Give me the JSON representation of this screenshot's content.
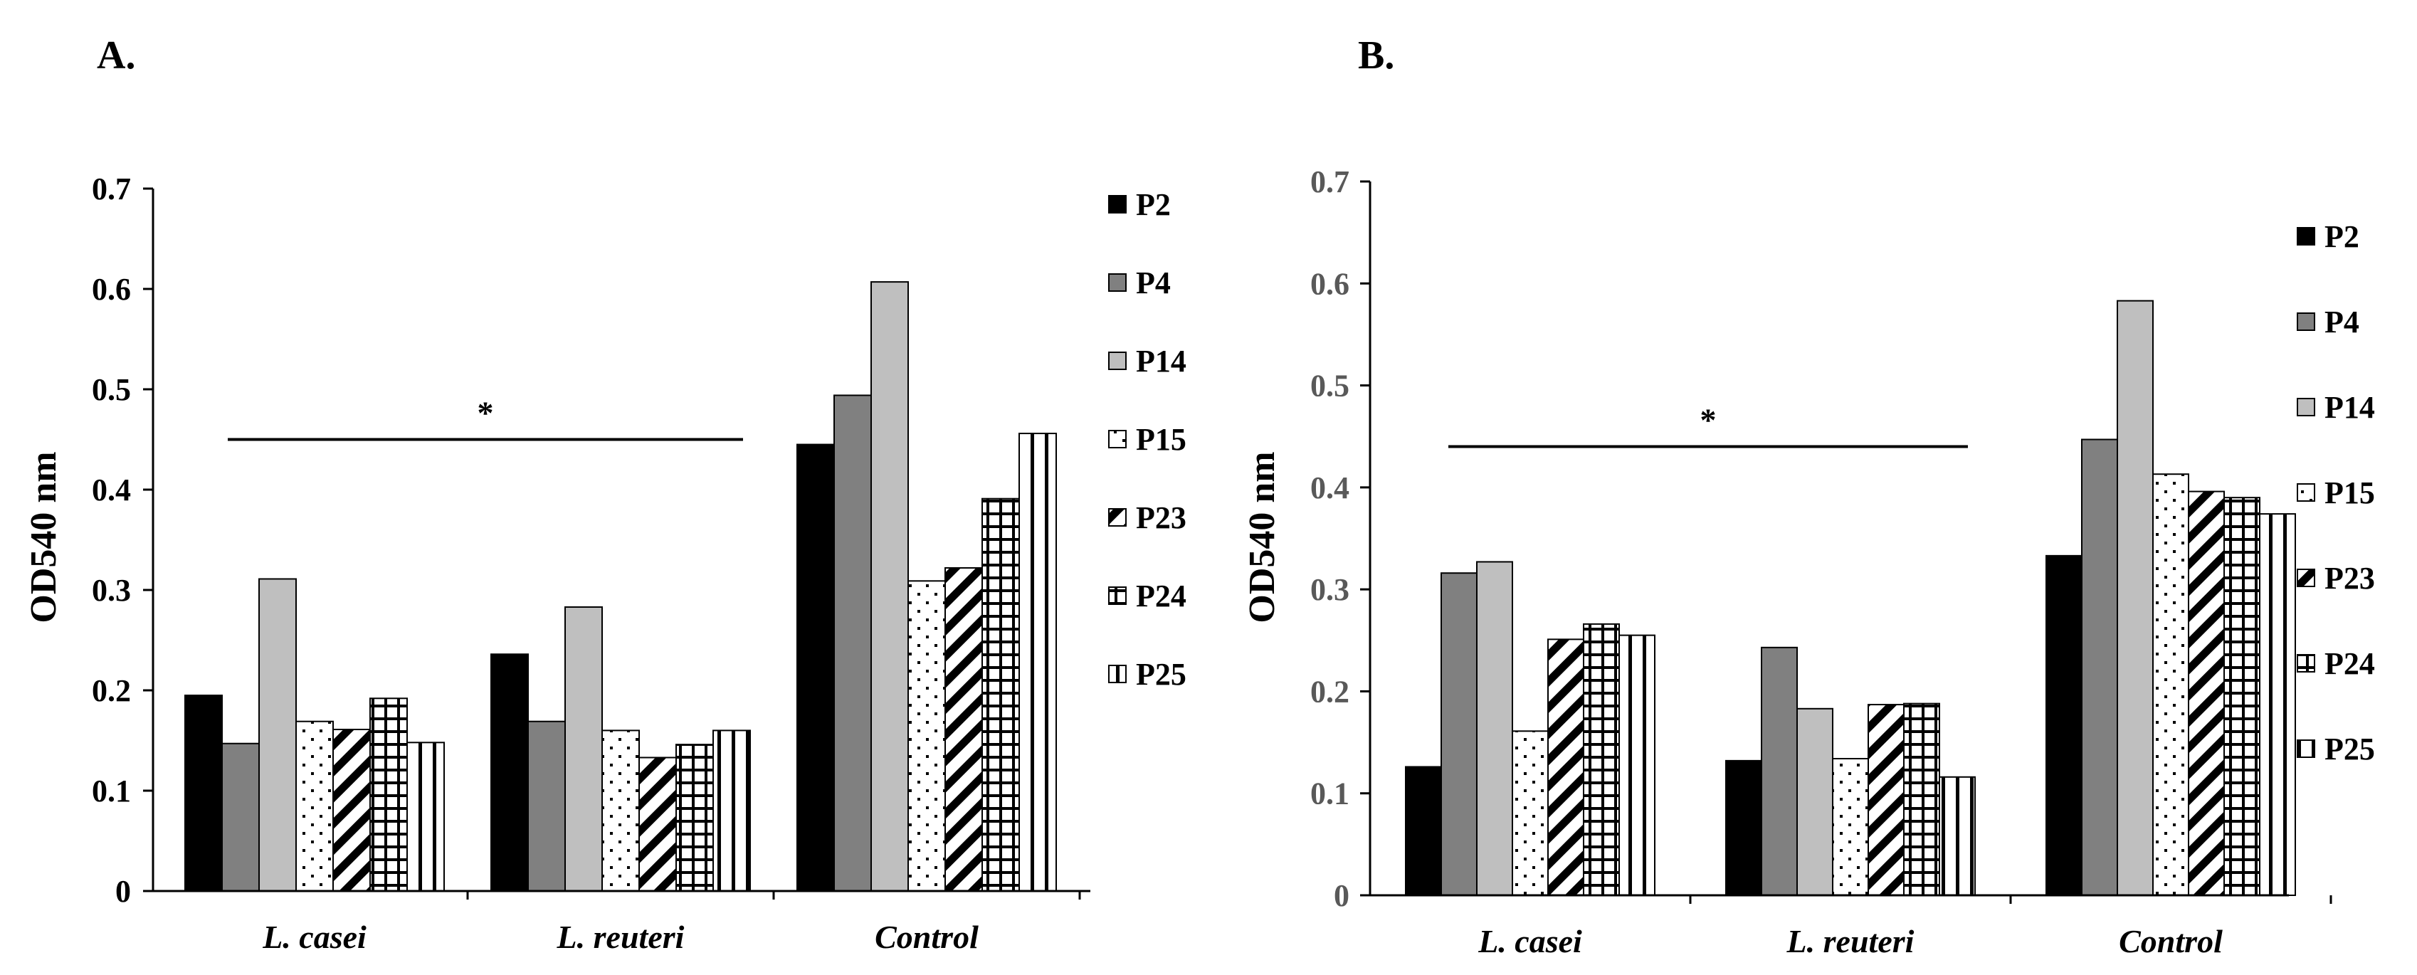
{
  "chart_data": [
    {
      "panel": "A.",
      "type": "bar",
      "ylabel": "OD540 nm",
      "xlabel": "",
      "ylim": [
        0,
        0.7
      ],
      "yticks": [
        "0",
        "0.1",
        "0.2",
        "0.3",
        "0.4",
        "0.5",
        "0.6",
        "0.7"
      ],
      "categories": [
        "L. casei",
        "L. reuteri",
        "Control"
      ],
      "series": [
        {
          "name": "P2",
          "values": [
            0.195,
            0.236,
            0.445
          ]
        },
        {
          "name": "P4",
          "values": [
            0.147,
            0.169,
            0.494
          ]
        },
        {
          "name": "P14",
          "values": [
            0.311,
            0.283,
            0.607
          ]
        },
        {
          "name": "P15",
          "values": [
            0.169,
            0.16,
            0.309
          ]
        },
        {
          "name": "P23",
          "values": [
            0.161,
            0.133,
            0.322
          ]
        },
        {
          "name": "P24",
          "values": [
            0.192,
            0.146,
            0.391
          ]
        },
        {
          "name": "P25",
          "values": [
            0.148,
            0.16,
            0.456
          ]
        }
      ],
      "significance": {
        "label": "*",
        "from": "L. casei",
        "to": "L. reuteri",
        "y": 0.45
      },
      "legend": "right"
    },
    {
      "panel": "B.",
      "type": "bar",
      "ylabel": "OD540 nm",
      "xlabel": "",
      "ylim": [
        0,
        0.7
      ],
      "yticks": [
        "0",
        "0.1",
        "0.2",
        "0.3",
        "0.4",
        "0.5",
        "0.6",
        "0.7"
      ],
      "categories": [
        "L. casei",
        "L. reuteri",
        "Control"
      ],
      "series": [
        {
          "name": "P2",
          "values": [
            0.126,
            0.132,
            0.333
          ]
        },
        {
          "name": "P4",
          "values": [
            0.316,
            0.243,
            0.447
          ]
        },
        {
          "name": "P14",
          "values": [
            0.327,
            0.183,
            0.583
          ]
        },
        {
          "name": "P15",
          "values": [
            0.161,
            0.134,
            0.413
          ]
        },
        {
          "name": "P23",
          "values": [
            0.251,
            0.187,
            0.396
          ]
        },
        {
          "name": "P24",
          "values": [
            0.266,
            0.188,
            0.39
          ]
        },
        {
          "name": "P25",
          "values": [
            0.255,
            0.116,
            0.374
          ]
        }
      ],
      "significance": {
        "label": "*",
        "from": "L. casei",
        "to": "L. reuteri",
        "y": 0.44
      },
      "legend": "right"
    }
  ],
  "series_styles": [
    {
      "name": "P2",
      "fill": "#000000",
      "pattern": "solid"
    },
    {
      "name": "P4",
      "fill": "#808080",
      "pattern": "solid"
    },
    {
      "name": "P14",
      "fill": "#bfbfbf",
      "pattern": "solid"
    },
    {
      "name": "P15",
      "fill": "#ffffff",
      "pattern": "dots"
    },
    {
      "name": "P23",
      "fill": "#ffffff",
      "pattern": "diagonal"
    },
    {
      "name": "P24",
      "fill": "#ffffff",
      "pattern": "grid"
    },
    {
      "name": "P25",
      "fill": "#ffffff",
      "pattern": "vertical"
    }
  ],
  "colors": {
    "axis": "#000000",
    "grey_tick": "#595959",
    "background": "#ffffff"
  }
}
